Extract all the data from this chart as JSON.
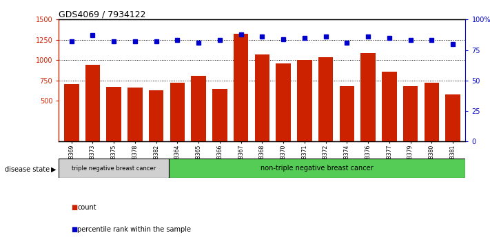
{
  "title": "GDS4069 / 7934122",
  "samples": [
    "GSM678369",
    "GSM678373",
    "GSM678375",
    "GSM678378",
    "GSM678382",
    "GSM678364",
    "GSM678365",
    "GSM678366",
    "GSM678367",
    "GSM678368",
    "GSM678370",
    "GSM678371",
    "GSM678372",
    "GSM678374",
    "GSM678376",
    "GSM678377",
    "GSM678379",
    "GSM678380",
    "GSM678381"
  ],
  "counts": [
    710,
    940,
    675,
    665,
    630,
    725,
    810,
    650,
    1325,
    1070,
    960,
    1005,
    1040,
    680,
    1085,
    855,
    680,
    720,
    580
  ],
  "percentiles": [
    82,
    87,
    82,
    82,
    82,
    83,
    81,
    83,
    88,
    86,
    84,
    85,
    86,
    81,
    86,
    85,
    83,
    83,
    80
  ],
  "ylim_left": [
    0,
    1500
  ],
  "ylim_right": [
    0,
    100
  ],
  "yticks_left": [
    500,
    750,
    1000,
    1250,
    1500
  ],
  "yticks_right": [
    0,
    25,
    50,
    75,
    100
  ],
  "bar_color": "#cc2200",
  "dot_color": "#0000cc",
  "group1_label": "triple negative breast cancer",
  "group2_label": "non-triple negative breast cancer",
  "group1_count": 5,
  "group2_count": 14,
  "legend_count_label": "count",
  "legend_percentile_label": "percentile rank within the sample",
  "disease_state_label": "disease state",
  "group1_bg": "#d0d0d0",
  "group2_bg": "#55cc55",
  "bg_plot": "#ffffff",
  "dotted_line_color": "#000000"
}
